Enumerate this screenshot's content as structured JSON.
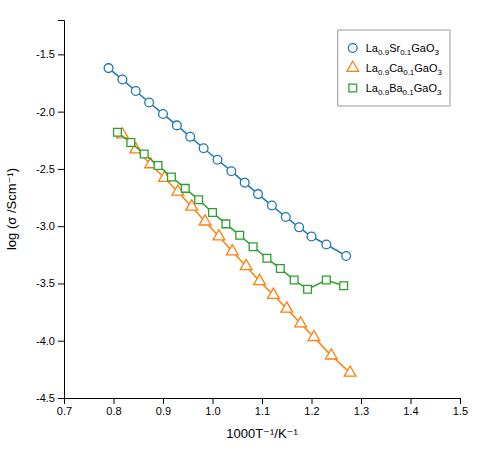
{
  "chart_data": {
    "type": "line",
    "xlabel": "1000T⁻¹/K⁻¹",
    "ylabel": "log (σ /Scm⁻¹)",
    "xlim": [
      0.7,
      1.5
    ],
    "ylim": [
      -4.5,
      -1.2
    ],
    "xticks": [
      0.7,
      0.8,
      0.9,
      {
        "value": 1.0,
        "label": "1.0"
      },
      1.1,
      1.2,
      1.3,
      1.4,
      1.5
    ],
    "yticks": [
      -4.5,
      {
        "value": -4.0,
        "label": "-4.0"
      },
      -3.5,
      {
        "value": -3.0,
        "label": "-3.0"
      },
      -2.5,
      {
        "value": -2.0,
        "label": "-2.0"
      },
      -1.5
    ],
    "grid": false,
    "legend": "upper-right",
    "series": [
      {
        "name": "La0.9Sr0.1GaO3",
        "marker": "circle",
        "x": [
          0.79,
          0.818,
          0.845,
          0.872,
          0.9,
          0.928,
          0.955,
          0.982,
          1.01,
          1.038,
          1.065,
          1.092,
          1.12,
          1.148,
          1.175,
          1.2,
          1.23,
          1.27
        ],
        "values": [
          -1.62,
          -1.72,
          -1.82,
          -1.92,
          -2.02,
          -2.12,
          -2.22,
          -2.32,
          -2.42,
          -2.52,
          -2.62,
          -2.72,
          -2.82,
          -2.92,
          -3.01,
          -3.09,
          -3.16,
          -3.26
        ]
      },
      {
        "name": "La0.9Ca0.1GaO3",
        "marker": "triangle",
        "x": [
          0.818,
          0.845,
          0.875,
          0.903,
          0.93,
          0.958,
          0.985,
          1.013,
          1.04,
          1.068,
          1.095,
          1.123,
          1.15,
          1.178,
          1.205,
          1.24,
          1.278
        ],
        "values": [
          -2.2,
          -2.33,
          -2.46,
          -2.58,
          -2.7,
          -2.83,
          -2.96,
          -3.09,
          -3.22,
          -3.35,
          -3.48,
          -3.6,
          -3.72,
          -3.85,
          -3.97,
          -4.13,
          -4.28
        ]
      },
      {
        "name": "La0.9Ba0.1GaO3",
        "marker": "square",
        "x": [
          0.808,
          0.835,
          0.862,
          0.89,
          0.917,
          0.945,
          0.972,
          1.0,
          1.027,
          1.055,
          1.082,
          1.11,
          1.137,
          1.165,
          1.192,
          1.23,
          1.265
        ],
        "values": [
          -2.18,
          -2.27,
          -2.37,
          -2.47,
          -2.57,
          -2.67,
          -2.77,
          -2.88,
          -2.98,
          -3.08,
          -3.18,
          -3.28,
          -3.37,
          -3.47,
          -3.55,
          -3.47,
          -3.52
        ]
      }
    ]
  }
}
